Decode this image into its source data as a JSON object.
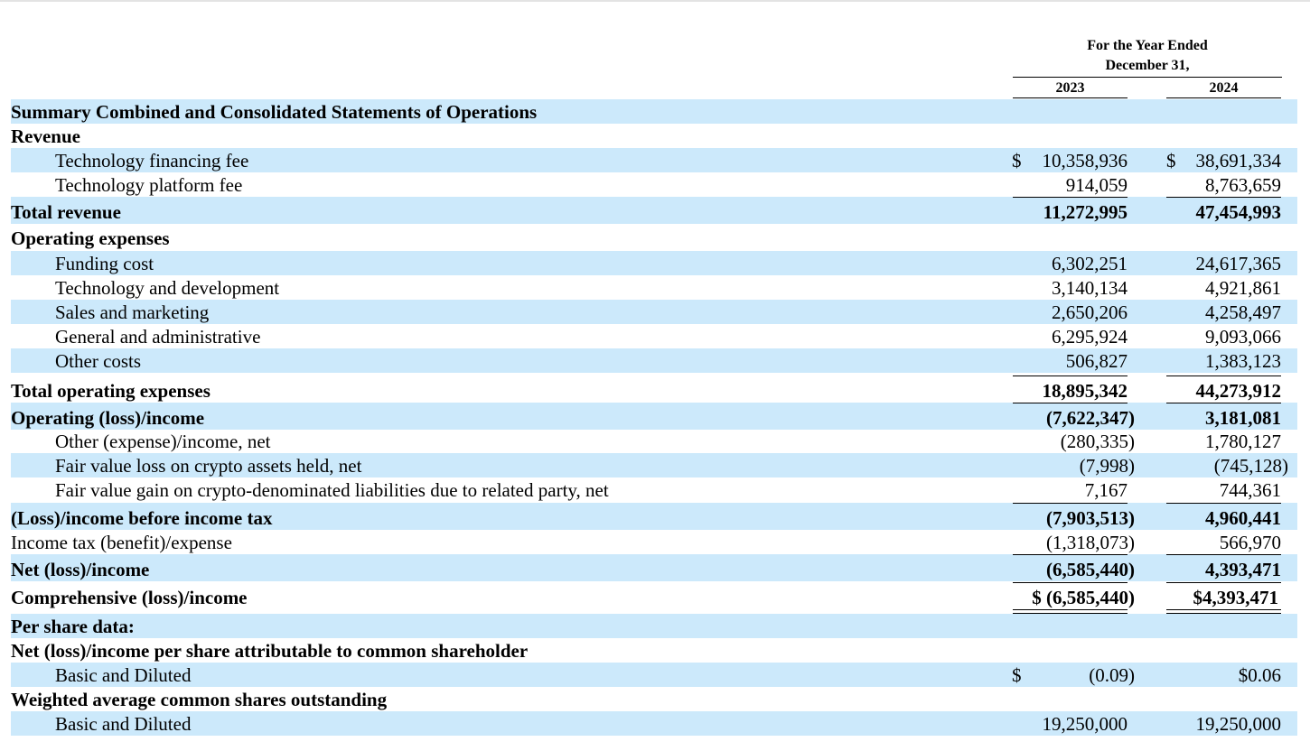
{
  "header": {
    "period_line1": "For the Year Ended",
    "period_line2": "December 31,",
    "col_2023": "2023",
    "col_2024": "2024"
  },
  "rows": {
    "title": "Summary Combined and Consolidated Statements of Operations",
    "revenue": "Revenue",
    "tech_financing": {
      "label": "Technology financing fee",
      "cur": "$",
      "v2023": "10,358,936",
      "v2024": "38,691,334"
    },
    "tech_platform": {
      "label": "Technology platform fee",
      "v2023": "914,059",
      "v2024": "8,763,659"
    },
    "total_revenue": {
      "label": "Total revenue",
      "v2023": "11,272,995",
      "v2024": "47,454,993"
    },
    "opex": "Operating expenses",
    "funding_cost": {
      "label": "Funding cost",
      "v2023": "6,302,251",
      "v2024": "24,617,365"
    },
    "tech_dev": {
      "label": "Technology and development",
      "v2023": "3,140,134",
      "v2024": "4,921,861"
    },
    "sales_mkt": {
      "label": "Sales and marketing",
      "v2023": "2,650,206",
      "v2024": "4,258,497"
    },
    "gen_admin": {
      "label": "General and administrative",
      "v2023": "6,295,924",
      "v2024": "9,093,066"
    },
    "other_costs": {
      "label": "Other costs",
      "v2023": "506,827",
      "v2024": "1,383,123"
    },
    "total_opex": {
      "label": "Total operating expenses",
      "v2023": "18,895,342",
      "v2024": "44,273,912"
    },
    "op_income": {
      "label": "Operating (loss)/income",
      "v2023": "(7,622,347)",
      "v2024": "3,181,081"
    },
    "other_income": {
      "label": "Other (expense)/income, net",
      "v2023": "(280,335)",
      "v2024": "1,780,127"
    },
    "fv_loss": {
      "label": "Fair value loss on crypto assets held, net",
      "v2023": "(7,998)",
      "v2024": "(745,128)"
    },
    "fv_gain": {
      "label": "Fair value gain on crypto-denominated liabilities due to related party, net",
      "v2023": "7,167",
      "v2024": "744,361"
    },
    "pre_tax": {
      "label": "(Loss)/income before income tax",
      "v2023": "(7,903,513)",
      "v2024": "4,960,441"
    },
    "tax": {
      "label": "Income tax (benefit)/expense",
      "v2023": "(1,318,073)",
      "v2024": "566,970"
    },
    "net_income": {
      "label": "Net (loss)/income",
      "v2023": "(6,585,440)",
      "v2024": "4,393,471"
    },
    "comprehensive": {
      "label": "Comprehensive (loss)/income",
      "v2023": "$ (6,585,440)",
      "v2024": "$4,393,471"
    },
    "per_share": "Per share data:",
    "eps_header": "Net (loss)/income per share attributable to common shareholder",
    "eps_basic": {
      "label": "Basic and Diluted",
      "cur": "$",
      "v2023": "(0.09)",
      "v2024": "$0.06"
    },
    "shares_header": "Weighted average common shares outstanding",
    "shares_basic": {
      "label": "Basic and Diluted",
      "v2023": "19,250,000",
      "v2024": "19,250,000"
    }
  }
}
